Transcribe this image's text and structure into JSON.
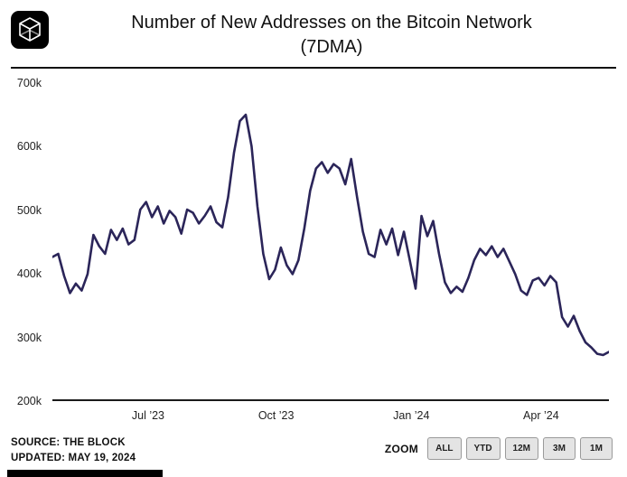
{
  "header": {
    "title_line1": "Number of New Addresses on the Bitcoin Network",
    "title_line2": "(7DMA)",
    "logo": "the-block-cube-logo"
  },
  "footer": {
    "source": "SOURCE: THE BLOCK",
    "updated": "UPDATED: MAY 19, 2024",
    "zoom_label": "ZOOM",
    "zoom_buttons": [
      "ALL",
      "YTD",
      "12M",
      "3M",
      "1M"
    ]
  },
  "chart_data": {
    "type": "line",
    "title": "Number of New Addresses on the Bitcoin Network (7DMA)",
    "xlabel": "",
    "ylabel": "",
    "unit": "new addresses (7-day moving average)",
    "ylim": [
      200000,
      700000
    ],
    "y_ticks": [
      "700k",
      "600k",
      "500k",
      "400k",
      "300k",
      "200k"
    ],
    "x_ticks": [
      {
        "label": "Jul ’23",
        "pos": 0.172
      },
      {
        "label": "Oct ’23",
        "pos": 0.402
      },
      {
        "label": "Jan ’24",
        "pos": 0.645
      },
      {
        "label": "Apr ’24",
        "pos": 0.878
      }
    ],
    "x_range": [
      "late Apr 2023",
      "mid May 2024"
    ],
    "grid": false,
    "legend": "none",
    "line_color": "#2b2559",
    "values_in_thousands": [
      425,
      430,
      395,
      368,
      383,
      372,
      398,
      460,
      442,
      430,
      468,
      452,
      470,
      445,
      452,
      500,
      512,
      488,
      505,
      478,
      498,
      488,
      462,
      500,
      495,
      478,
      490,
      505,
      480,
      472,
      520,
      590,
      640,
      650,
      600,
      505,
      430,
      390,
      405,
      440,
      412,
      398,
      420,
      470,
      530,
      565,
      575,
      558,
      572,
      565,
      540,
      580,
      520,
      465,
      430,
      425,
      468,
      445,
      470,
      428,
      465,
      420,
      375,
      490,
      458,
      482,
      430,
      385,
      368,
      378,
      370,
      392,
      420,
      438,
      428,
      442,
      425,
      438,
      418,
      398,
      372,
      365,
      388,
      392,
      380,
      395,
      385,
      330,
      315,
      332,
      308,
      290,
      282,
      272,
      270,
      275
    ]
  }
}
